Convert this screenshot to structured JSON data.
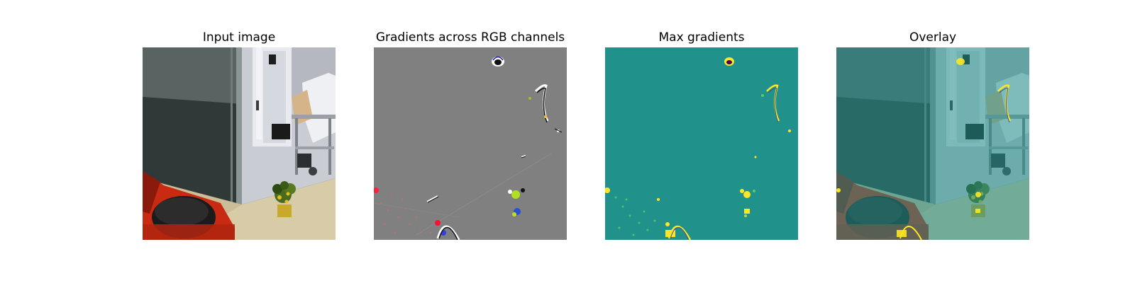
{
  "panels": [
    {
      "title": "Input image"
    },
    {
      "title": "Gradients across RGB channels"
    },
    {
      "title": "Max gradients"
    },
    {
      "title": "Overlay"
    }
  ],
  "colors": {
    "background": "#ffffff",
    "gradient_gray": "#808080",
    "viridis_mid_teal": "#21918c",
    "viridis_yellow": "#fde725",
    "robot_red": "#d42a10",
    "floor_beige": "#d8cba8",
    "plant_green": "#4a6a1e"
  },
  "icons": {
    "input": "indoor-scene-photo",
    "gradients": "rgb-saliency-map",
    "max_gradients": "viridis-saliency-map",
    "overlay": "saliency-overlay-photo"
  }
}
